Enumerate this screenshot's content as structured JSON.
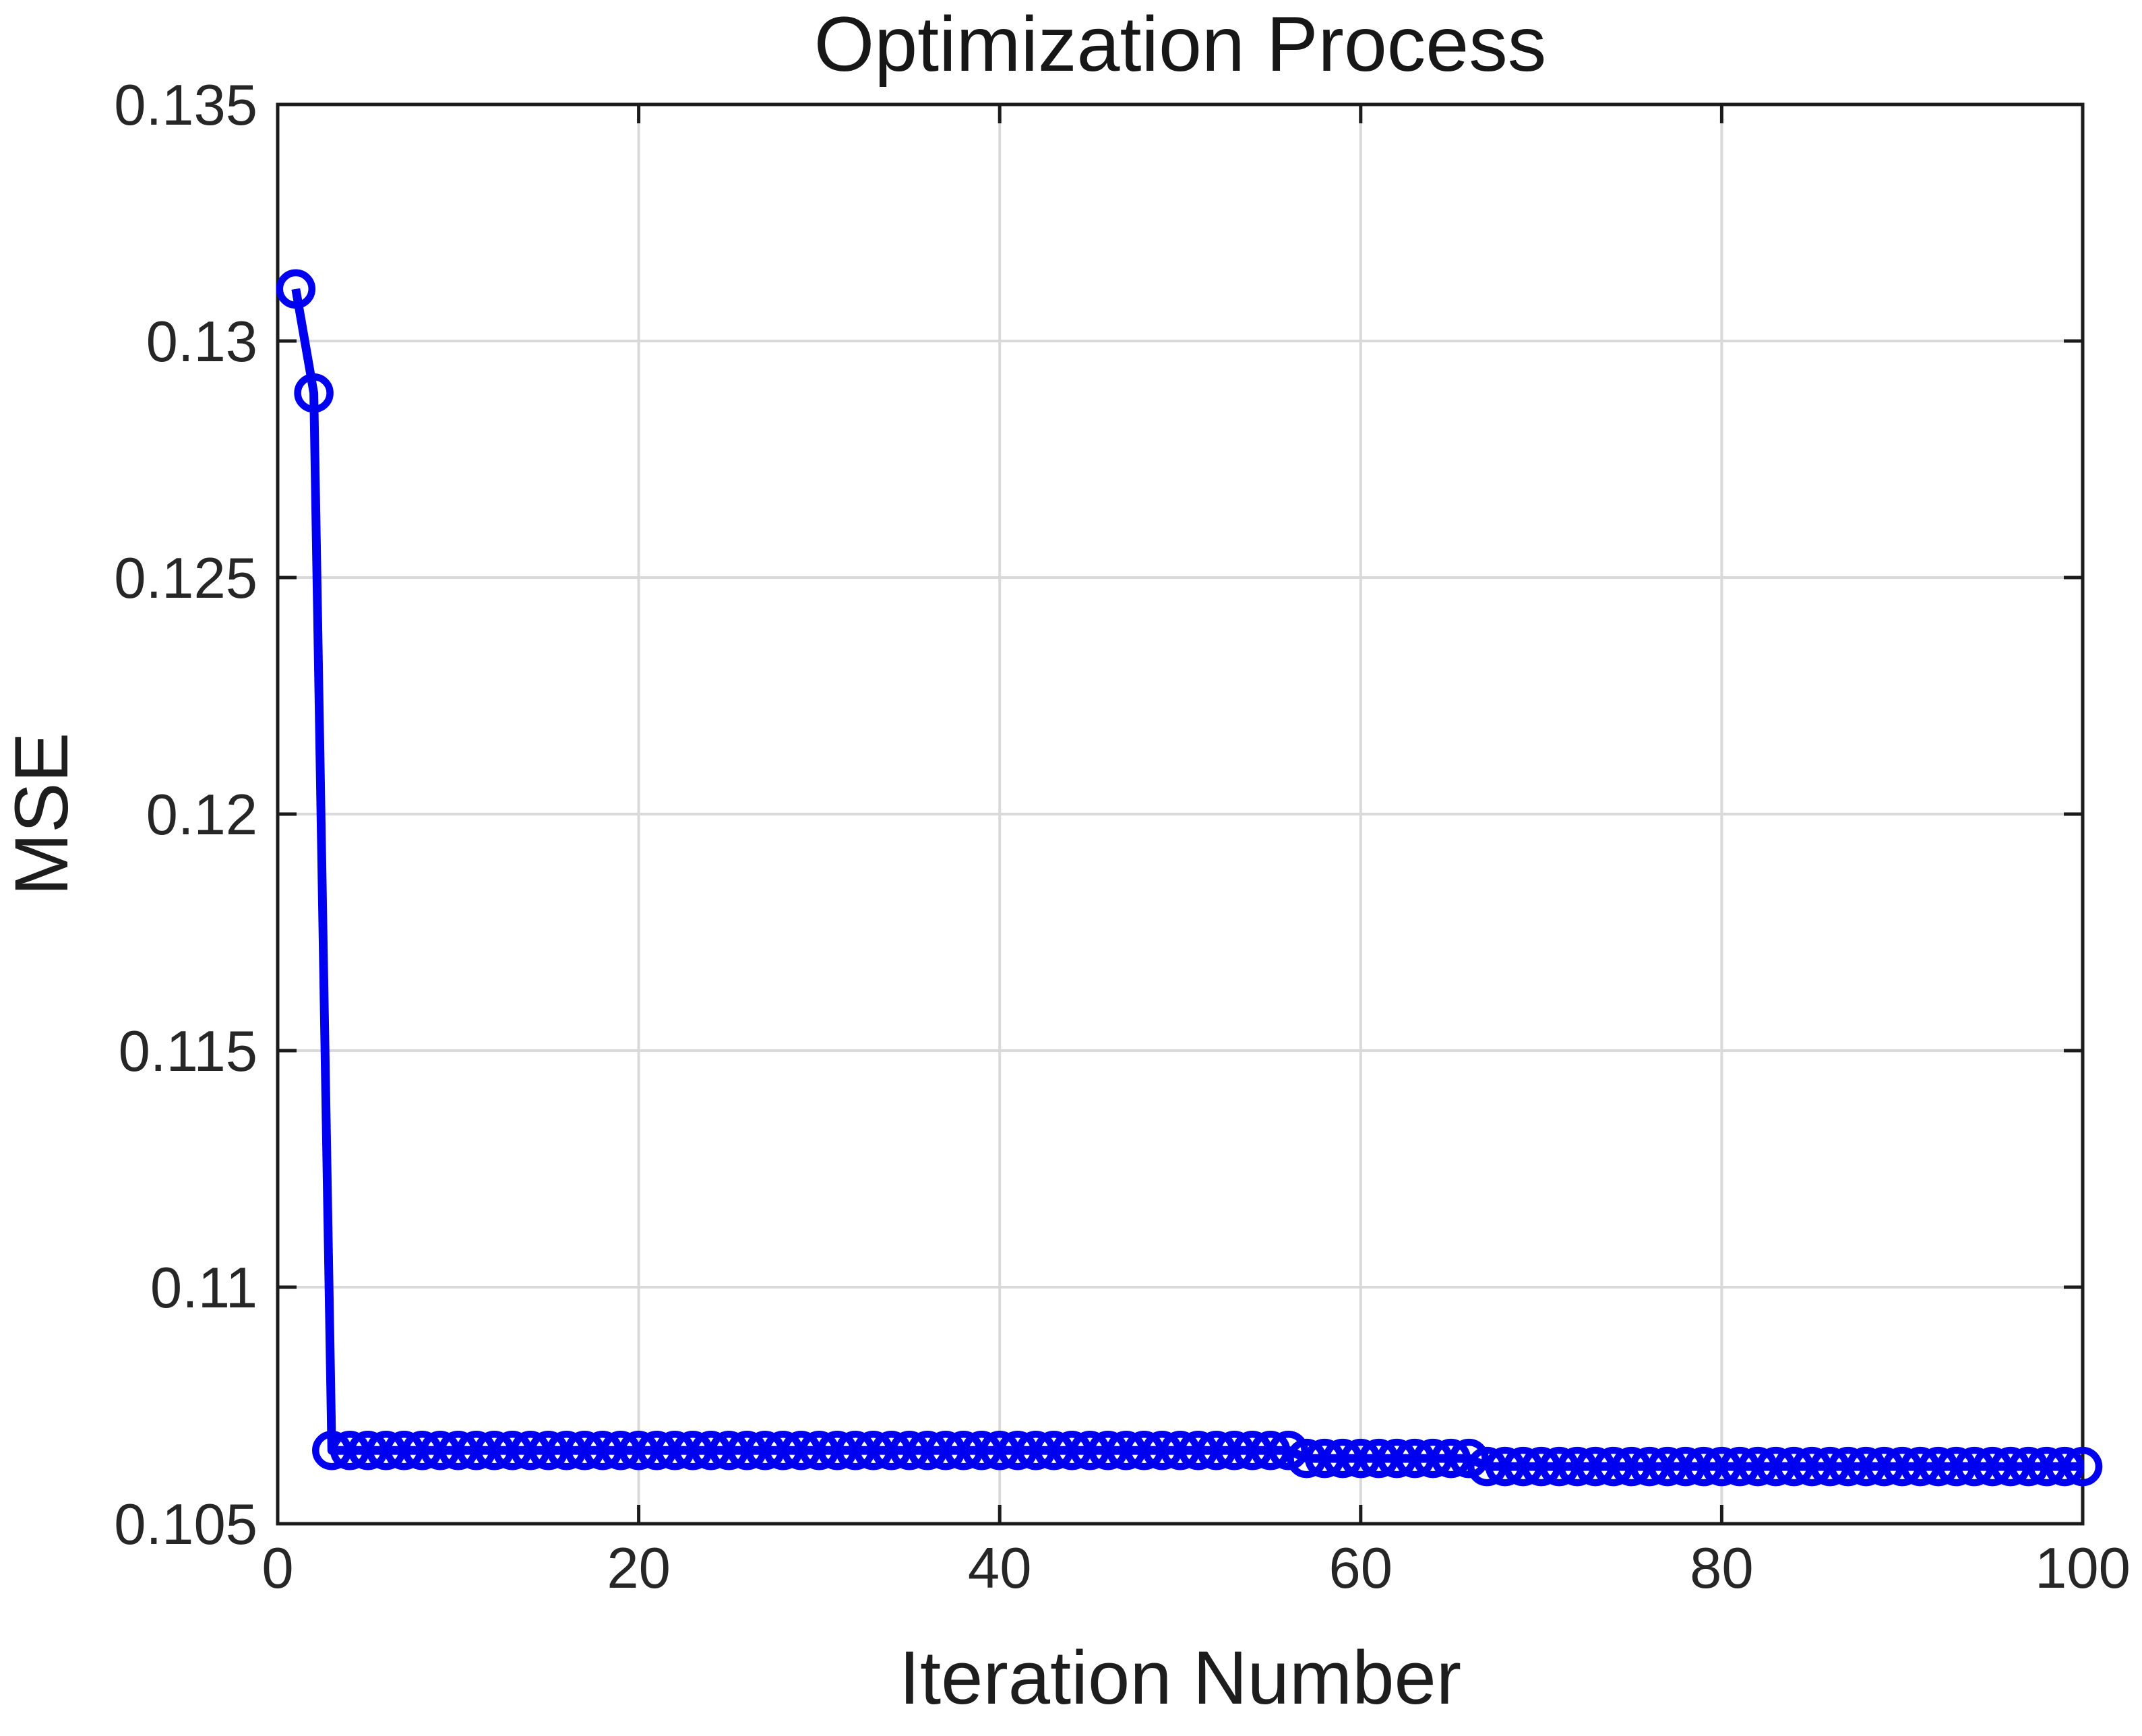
{
  "chart_data": {
    "type": "line",
    "title": "Optimization Process",
    "xlabel": "Iteration Number",
    "ylabel": "MSE",
    "xlim": [
      0,
      100
    ],
    "ylim": [
      0.105,
      0.135
    ],
    "xticks": [
      0,
      20,
      40,
      60,
      80,
      100
    ],
    "xtick_labels": [
      "0",
      "20",
      "40",
      "60",
      "80",
      "100"
    ],
    "yticks": [
      0.105,
      0.11,
      0.115,
      0.12,
      0.125,
      0.13,
      0.135
    ],
    "ytick_labels": [
      "0.105",
      "0.11",
      "0.115",
      "0.12",
      "0.125",
      "0.13",
      "0.135"
    ],
    "grid": true,
    "legend_position": "none",
    "line_color": "#0000f0",
    "marker": "open-circle",
    "grid_color": "#d9d9d9",
    "axis_color": "#1b1b1b",
    "tick_label_color": "#262626",
    "series": [
      {
        "name": "MSE",
        "x": [
          1,
          2,
          3,
          4,
          5,
          6,
          7,
          8,
          9,
          10,
          11,
          12,
          13,
          14,
          15,
          16,
          17,
          18,
          19,
          20,
          21,
          22,
          23,
          24,
          25,
          26,
          27,
          28,
          29,
          30,
          31,
          32,
          33,
          34,
          35,
          36,
          37,
          38,
          39,
          40,
          41,
          42,
          43,
          44,
          45,
          46,
          47,
          48,
          49,
          50,
          51,
          52,
          53,
          54,
          55,
          56,
          57,
          58,
          59,
          60,
          61,
          62,
          63,
          64,
          65,
          66,
          67,
          68,
          69,
          70,
          71,
          72,
          73,
          74,
          75,
          76,
          77,
          78,
          79,
          80,
          81,
          82,
          83,
          84,
          85,
          86,
          87,
          88,
          89,
          90,
          91,
          92,
          93,
          94,
          95,
          96,
          97,
          98,
          99,
          100
        ],
        "y": [
          0.1311,
          0.1289,
          0.10655,
          0.10655,
          0.10655,
          0.10655,
          0.10655,
          0.10655,
          0.10655,
          0.10655,
          0.10655,
          0.10655,
          0.10655,
          0.10655,
          0.10655,
          0.10655,
          0.10655,
          0.10655,
          0.10655,
          0.10655,
          0.10655,
          0.10655,
          0.10655,
          0.10655,
          0.10655,
          0.10655,
          0.10655,
          0.10655,
          0.10655,
          0.10655,
          0.10655,
          0.10655,
          0.10655,
          0.10655,
          0.10655,
          0.10655,
          0.10655,
          0.10655,
          0.10655,
          0.10655,
          0.10655,
          0.10655,
          0.10655,
          0.10655,
          0.10655,
          0.10655,
          0.10655,
          0.10655,
          0.10655,
          0.10655,
          0.10655,
          0.10655,
          0.10655,
          0.10655,
          0.10655,
          0.10655,
          0.10638,
          0.10638,
          0.10638,
          0.10638,
          0.10638,
          0.10638,
          0.10638,
          0.10638,
          0.10638,
          0.10638,
          0.10621,
          0.10621,
          0.10621,
          0.10621,
          0.10621,
          0.10621,
          0.10621,
          0.10621,
          0.10621,
          0.10621,
          0.10621,
          0.10621,
          0.10621,
          0.10621,
          0.10621,
          0.10621,
          0.10621,
          0.10621,
          0.10621,
          0.10621,
          0.10621,
          0.10621,
          0.10621,
          0.10621,
          0.10621,
          0.10621,
          0.10621,
          0.10621,
          0.10621,
          0.10621,
          0.10621,
          0.10621,
          0.10621,
          0.10621
        ]
      }
    ]
  }
}
